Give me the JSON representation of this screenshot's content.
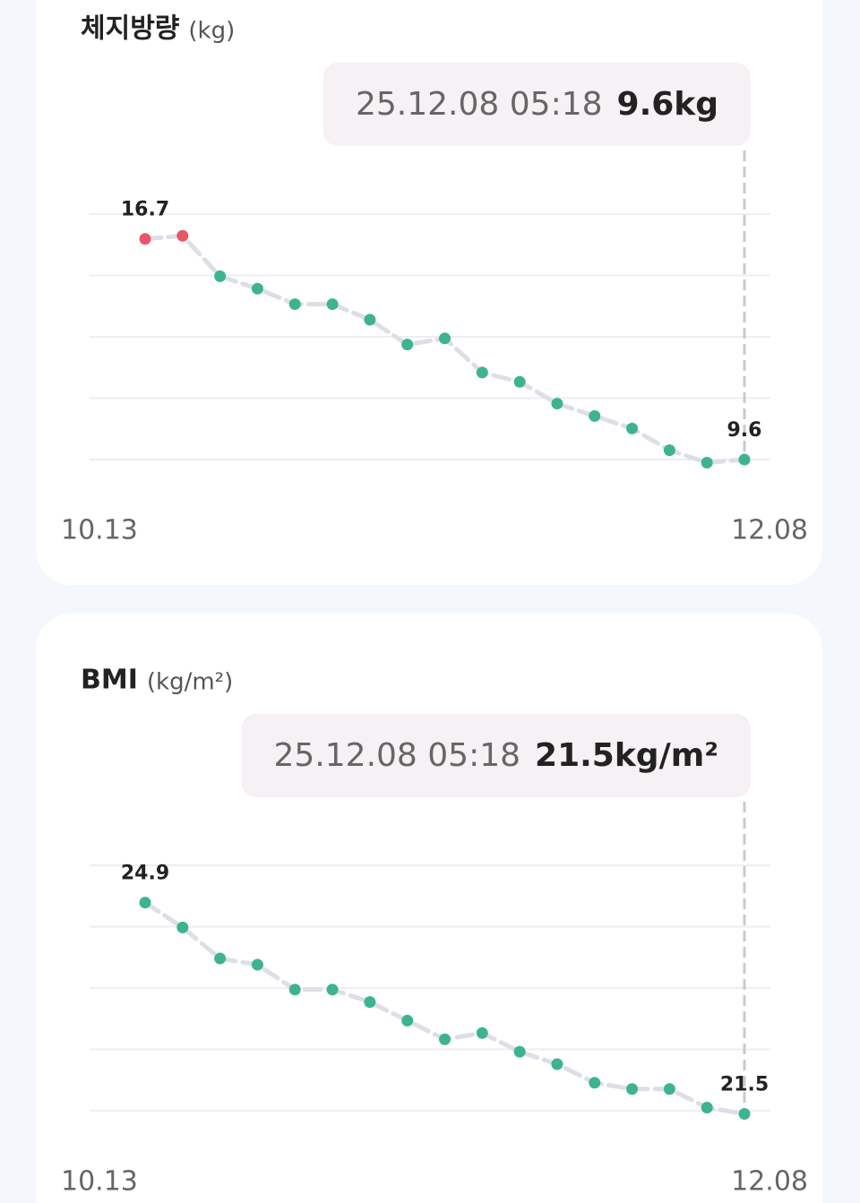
{
  "chart_data": [
    {
      "type": "line",
      "title": "체지방량",
      "unit": "(kg)",
      "tooltip": {
        "date": "25.12.08 05:18",
        "value": "9.6kg"
      },
      "categories": [
        "10.13",
        null,
        null,
        null,
        null,
        null,
        null,
        null,
        null,
        null,
        null,
        null,
        null,
        null,
        null,
        null,
        "12.08"
      ],
      "values": [
        16.7,
        16.8,
        15.5,
        15.1,
        14.6,
        14.6,
        14.1,
        13.3,
        13.5,
        12.4,
        12.1,
        11.4,
        11.0,
        10.6,
        9.9,
        9.5,
        9.6
      ],
      "point_colors": [
        "#e8566a",
        "#e8566a",
        "#3db48f",
        "#3db48f",
        "#3db48f",
        "#3db48f",
        "#3db48f",
        "#3db48f",
        "#3db48f",
        "#3db48f",
        "#3db48f",
        "#3db48f",
        "#3db48f",
        "#3db48f",
        "#3db48f",
        "#3db48f",
        "#3db48f"
      ],
      "ylim": [
        9.6,
        17.5
      ],
      "grid": true
    },
    {
      "type": "line",
      "title": "BMI",
      "unit": "(kg/m²)",
      "tooltip": {
        "date": "25.12.08 05:18",
        "value": "21.5kg/m²"
      },
      "categories": [
        "10.13",
        null,
        null,
        null,
        null,
        null,
        null,
        null,
        null,
        null,
        null,
        null,
        null,
        null,
        null,
        null,
        "12.08"
      ],
      "values": [
        24.9,
        24.5,
        24.0,
        23.9,
        23.5,
        23.5,
        23.3,
        23.0,
        22.7,
        22.8,
        22.5,
        22.3,
        22.0,
        21.9,
        21.9,
        21.6,
        21.5
      ],
      "point_colors": [
        "#3db48f",
        "#3db48f",
        "#3db48f",
        "#3db48f",
        "#3db48f",
        "#3db48f",
        "#3db48f",
        "#3db48f",
        "#3db48f",
        "#3db48f",
        "#3db48f",
        "#3db48f",
        "#3db48f",
        "#3db48f",
        "#3db48f",
        "#3db48f",
        "#3db48f"
      ],
      "ylim": [
        21.55,
        25.5
      ],
      "grid": true
    }
  ]
}
